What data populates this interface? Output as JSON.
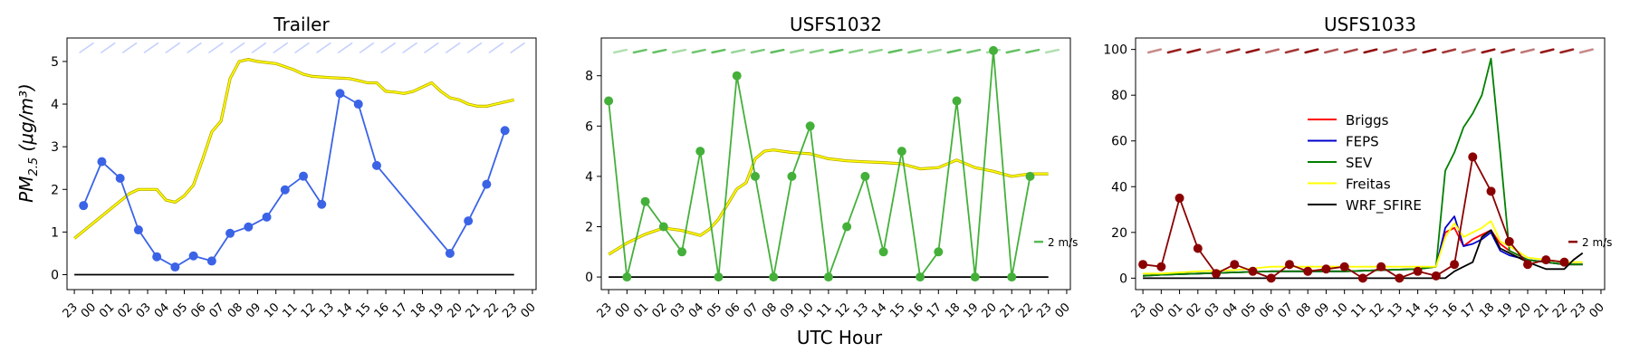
{
  "figure": {
    "ylabel_main": "PM",
    "ylabel_sub": "2.5",
    "ylabel_units": "(μg/m³)",
    "xlabel": "UTC Hour"
  },
  "chart_data": [
    {
      "type": "line",
      "title": "Trailer",
      "ylim": [
        -0.35,
        5.55
      ],
      "yticks": [
        0,
        1,
        2,
        3,
        4,
        5
      ],
      "xticks": [
        -1,
        0,
        1,
        2,
        3,
        4,
        5,
        6,
        7,
        8,
        9,
        10,
        11,
        12,
        13,
        14,
        15,
        16,
        17,
        18,
        19,
        20,
        21,
        22,
        23,
        24
      ],
      "xticklabels": [
        "23",
        "00",
        "01",
        "02",
        "03",
        "04",
        "05",
        "06",
        "07",
        "08",
        "09",
        "10",
        "11",
        "12",
        "13",
        "14",
        "15",
        "16",
        "17",
        "18",
        "19",
        "20",
        "21",
        "22",
        "23",
        "00"
      ],
      "xlim": [
        -1.4,
        24.2
      ],
      "colors": {
        "obs": "#3b63e6",
        "freitas": "#ffff00",
        "wrf": "#000000",
        "wind": "#c0ccff"
      },
      "series": [
        {
          "kind": "obs",
          "x": [
            -0.5,
            0.5,
            1.5,
            2.5,
            3.5,
            4.5,
            5.5,
            6.5,
            7.5,
            8.5,
            9.5,
            10.5,
            11.5,
            12.5,
            13.5,
            14.5,
            15.5,
            19.5,
            20.5,
            21.5,
            22.5
          ],
          "values": [
            1.62,
            2.65,
            2.26,
            1.05,
            0.42,
            0.18,
            0.44,
            0.32,
            0.97,
            1.12,
            1.35,
            1.99,
            2.31,
            1.65,
            4.25,
            4.0,
            2.56,
            0.5,
            1.26,
            2.12,
            3.38
          ]
        },
        {
          "kind": "freitas",
          "x": [
            -1,
            0,
            1,
            2,
            2.5,
            3,
            3.5,
            4,
            4.5,
            5,
            5.5,
            6,
            6.5,
            7,
            7.5,
            8,
            8.5,
            9,
            10,
            11,
            11.5,
            12,
            13,
            14,
            14.5,
            15,
            15.5,
            16,
            16.5,
            17,
            17.5,
            18,
            18.5,
            19,
            19.5,
            20,
            20.5,
            21,
            21.5,
            22,
            22.5,
            23
          ],
          "values": [
            0.85,
            1.2,
            1.55,
            1.9,
            2.0,
            2.0,
            2.0,
            1.75,
            1.7,
            1.85,
            2.1,
            2.7,
            3.35,
            3.6,
            4.6,
            5.0,
            5.05,
            5.0,
            4.95,
            4.8,
            4.7,
            4.65,
            4.62,
            4.6,
            4.55,
            4.5,
            4.5,
            4.3,
            4.28,
            4.25,
            4.3,
            4.4,
            4.5,
            4.3,
            4.15,
            4.1,
            4.0,
            3.95,
            3.95,
            4.0,
            4.05,
            4.1
          ]
        },
        {
          "kind": "wrf",
          "x": [
            -1,
            23
          ],
          "values": [
            0,
            0
          ]
        }
      ],
      "wind_arrows": {
        "count": 21
      }
    },
    {
      "type": "line",
      "title": "USFS1032",
      "ylim": [
        -0.5,
        9.5
      ],
      "yticks": [
        0,
        2,
        4,
        6,
        8
      ],
      "xticks": [
        -1,
        0,
        1,
        2,
        3,
        4,
        5,
        6,
        7,
        8,
        9,
        10,
        11,
        12,
        13,
        14,
        15,
        16,
        17,
        18,
        19,
        20,
        21,
        22,
        23,
        24
      ],
      "xticklabels": [
        "23",
        "00",
        "01",
        "02",
        "03",
        "04",
        "05",
        "06",
        "07",
        "08",
        "09",
        "10",
        "11",
        "12",
        "13",
        "14",
        "15",
        "16",
        "17",
        "18",
        "19",
        "20",
        "21",
        "22",
        "23",
        "00"
      ],
      "xlim": [
        -1.4,
        24.2
      ],
      "colors": {
        "obs": "#44b03a",
        "freitas": "#ffff00",
        "wrf": "#000000",
        "wind": "#55bb55"
      },
      "series": [
        {
          "kind": "obs",
          "x": [
            -1,
            0,
            1,
            2,
            3,
            4,
            5,
            6,
            7,
            8,
            9,
            10,
            11,
            12,
            13,
            14,
            15,
            16,
            17,
            18,
            19,
            20,
            21,
            22
          ],
          "values": [
            7,
            0,
            3,
            2,
            1,
            5,
            0,
            8,
            4,
            0,
            4,
            6,
            0,
            2,
            4,
            1,
            5,
            0,
            1,
            7,
            0,
            9,
            0,
            4
          ]
        },
        {
          "kind": "freitas",
          "x": [
            -1,
            0,
            1,
            2,
            3,
            3.5,
            4,
            4.5,
            5,
            5.5,
            6,
            6.5,
            7,
            7.5,
            8,
            9,
            10,
            10.5,
            11,
            12,
            13,
            14,
            15,
            16,
            17,
            18,
            19,
            20,
            21,
            22,
            23
          ],
          "values": [
            0.9,
            1.35,
            1.7,
            1.95,
            1.85,
            1.75,
            1.65,
            1.9,
            2.3,
            2.9,
            3.5,
            3.75,
            4.7,
            5.0,
            5.05,
            4.95,
            4.9,
            4.8,
            4.7,
            4.62,
            4.58,
            4.55,
            4.5,
            4.3,
            4.35,
            4.65,
            4.35,
            4.2,
            4.0,
            4.1,
            4.1
          ]
        },
        {
          "kind": "wrf",
          "x": [
            -1,
            23
          ],
          "values": [
            0,
            0
          ]
        }
      ],
      "wind_arrows": {
        "count": 23
      },
      "wind_key": "2 m/s"
    },
    {
      "type": "line",
      "title": "USFS1033",
      "ylim": [
        -5,
        105
      ],
      "yticks": [
        0,
        20,
        40,
        60,
        80,
        100
      ],
      "xticks": [
        -1,
        0,
        1,
        2,
        3,
        4,
        5,
        6,
        7,
        8,
        9,
        10,
        11,
        12,
        13,
        14,
        15,
        16,
        17,
        18,
        19,
        20,
        21,
        22,
        23,
        24
      ],
      "xticklabels": [
        "23",
        "00",
        "01",
        "02",
        "03",
        "04",
        "05",
        "06",
        "07",
        "08",
        "09",
        "10",
        "11",
        "12",
        "13",
        "14",
        "15",
        "16",
        "17",
        "18",
        "19",
        "20",
        "21",
        "22",
        "23",
        "00"
      ],
      "xlim": [
        -1.4,
        24.2
      ],
      "colors": {
        "obs": "#8b0000",
        "wind": "#8b0000"
      },
      "legend": {
        "position": "center-left",
        "entries": [
          {
            "name": "Briggs",
            "color": "#ff0000"
          },
          {
            "name": "FEPS",
            "color": "#0000cc"
          },
          {
            "name": "SEV",
            "color": "#008000"
          },
          {
            "name": "Freitas",
            "color": "#ffff00"
          },
          {
            "name": "WRF_SFIRE",
            "color": "#000000"
          }
        ]
      },
      "series": [
        {
          "kind": "line",
          "name": "Briggs",
          "color": "#ff0000",
          "x": [
            -1,
            0,
            2,
            4,
            6,
            8,
            10,
            12,
            14,
            15,
            15.5,
            16,
            16.5,
            17,
            17.5,
            18,
            18.5,
            19,
            20,
            21,
            22,
            23
          ],
          "values": [
            1,
            1.5,
            2,
            2.5,
            3,
            3,
            3,
            3.5,
            4,
            5,
            20,
            22,
            14,
            17,
            19,
            21,
            15,
            12,
            8,
            7,
            6,
            6
          ]
        },
        {
          "kind": "line",
          "name": "FEPS",
          "color": "#0000cc",
          "x": [
            -1,
            0,
            2,
            4,
            6,
            8,
            10,
            12,
            14,
            15,
            15.5,
            16,
            16.5,
            17,
            17.5,
            18,
            18.5,
            19,
            20,
            21,
            22,
            23
          ],
          "values": [
            1,
            1.5,
            2,
            2.5,
            3,
            3,
            3,
            3.5,
            4,
            5,
            22,
            27,
            14,
            15,
            17,
            20,
            12,
            10,
            8,
            7,
            6,
            6
          ]
        },
        {
          "kind": "line",
          "name": "SEV",
          "color": "#008000",
          "x": [
            -1,
            0,
            2,
            4,
            6,
            8,
            10,
            12,
            14,
            15,
            15.5,
            16,
            16.5,
            17,
            17.5,
            18,
            18.5,
            19,
            20,
            21,
            22,
            23
          ],
          "values": [
            1,
            1.5,
            2,
            2.5,
            3,
            3,
            3,
            3.5,
            4,
            5,
            47,
            55,
            66,
            72,
            80,
            96,
            55,
            12,
            8,
            7,
            6,
            6
          ]
        },
        {
          "kind": "line",
          "name": "Freitas",
          "color": "#ffff00",
          "x": [
            -1,
            0,
            2,
            4,
            6,
            8,
            10,
            12,
            14,
            15,
            15.5,
            16,
            16.5,
            17,
            17.5,
            18,
            18.5,
            19,
            20,
            21,
            22,
            23
          ],
          "values": [
            2,
            2,
            3,
            3.5,
            5,
            5,
            5,
            5,
            5,
            5,
            18,
            24,
            18,
            20,
            22,
            25,
            16,
            14,
            9,
            8,
            7,
            7
          ]
        },
        {
          "kind": "line",
          "name": "WRF_SFIRE",
          "color": "#000000",
          "x": [
            -1,
            0,
            2,
            4,
            6,
            8,
            10,
            12,
            14,
            15,
            15.5,
            16,
            16.5,
            17,
            17.5,
            18,
            18.5,
            19,
            20,
            21,
            22,
            22.5,
            23
          ],
          "values": [
            0,
            0,
            0,
            0,
            0,
            0,
            0,
            0,
            0,
            0,
            0,
            3,
            5,
            7,
            18,
            21,
            13,
            11,
            7,
            4,
            4,
            8,
            11
          ]
        },
        {
          "kind": "obs",
          "x": [
            -1,
            0,
            1,
            2,
            3,
            4,
            5,
            6,
            7,
            8,
            9,
            10,
            11,
            12,
            13,
            14,
            15,
            16,
            17,
            18,
            19,
            20,
            21,
            22
          ],
          "values": [
            6,
            5,
            35,
            13,
            2,
            6,
            3,
            0,
            6,
            3,
            4,
            5,
            0,
            5,
            0,
            3,
            1,
            6,
            53,
            38,
            16,
            6,
            8,
            7
          ]
        }
      ],
      "wind_arrows": {
        "count": 23
      },
      "wind_key": "2 m/s"
    }
  ]
}
